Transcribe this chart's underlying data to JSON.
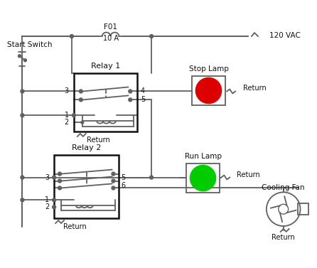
{
  "bg_color": "#ffffff",
  "line_color": "#606060",
  "line_width": 1.3,
  "relay1_label": "Relay 1",
  "relay2_label": "Relay 2",
  "fuse_label": "F01",
  "fuse_sub": "10 A",
  "vac_label": "120 VAC",
  "start_label": "Start Switch",
  "stop_lamp_label": "Stop Lamp",
  "run_lamp_label": "Run Lamp",
  "fan_label": "Cooling Fan",
  "return_label": "Return",
  "red_color": "#dd0000",
  "green_color": "#00cc00",
  "relay_box_color": "#111111",
  "text_color": "#111111"
}
